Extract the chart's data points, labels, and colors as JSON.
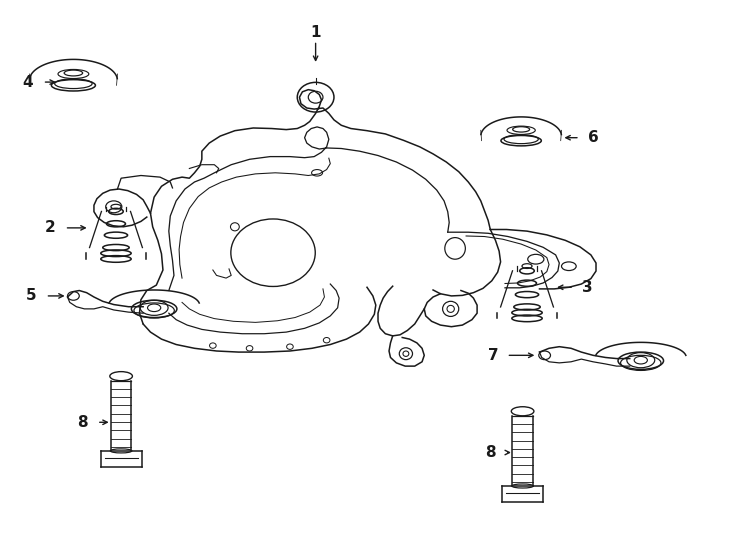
{
  "bg_color": "#ffffff",
  "line_color": "#1a1a1a",
  "lw": 1.1,
  "fig_width": 7.34,
  "fig_height": 5.4,
  "dpi": 100
}
